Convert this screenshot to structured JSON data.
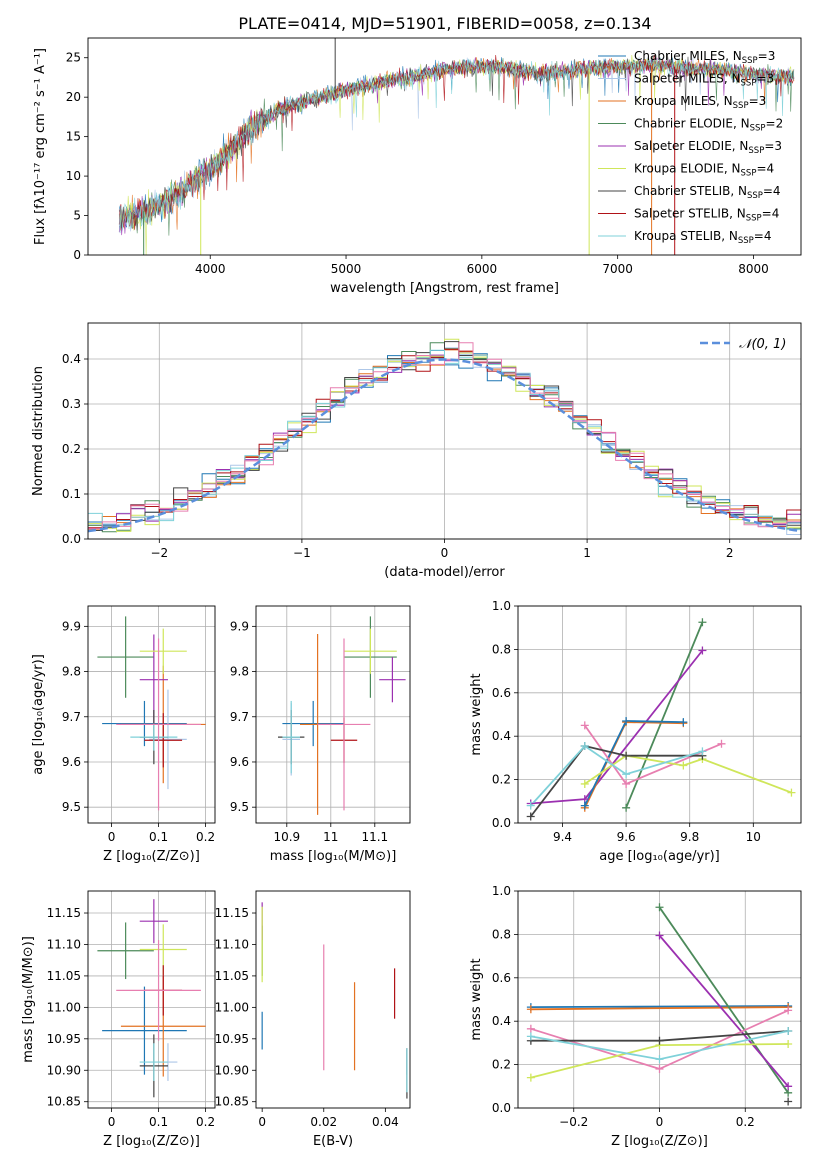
{
  "title": "PLATE=0414, MJD=51901, FIBERID=0058, z=0.134",
  "colors": {
    "chabrier_miles": "#1f77b4",
    "salpeter_miles": "#aec7e8",
    "kroupa_miles": "#e37222",
    "chabrier_elodie": "#4c8a5a",
    "salpeter_elodie": "#9b30b0",
    "kroupa_elodie": "#cfe65a",
    "chabrier_stelib": "#444444",
    "salpeter_stelib": "#b01217",
    "kroupa_stelib": "#7fd1d9",
    "pink": "#e77fb0",
    "normal": "#5b8fdc",
    "grid": "#b0b0b0"
  },
  "chart_data": [
    {
      "id": "spectrum",
      "type": "line",
      "xlabel": "wavelength [Angstrom, rest frame]",
      "ylabel": "Flux [fλ10⁻¹⁷ erg cm⁻² s⁻¹ A⁻¹]",
      "xlim": [
        3100,
        8350
      ],
      "ylim": [
        0,
        27.5
      ],
      "xticks": [
        4000,
        5000,
        6000,
        7000,
        8000
      ],
      "yticks": [
        0,
        5,
        10,
        15,
        20,
        25
      ],
      "continuum": [
        [
          3330,
          4.5
        ],
        [
          3500,
          5.5
        ],
        [
          3700,
          7
        ],
        [
          3850,
          9
        ],
        [
          4000,
          11
        ],
        [
          4100,
          12.5
        ],
        [
          4300,
          16
        ],
        [
          4500,
          18.5
        ],
        [
          4800,
          20
        ],
        [
          5000,
          21
        ],
        [
          5300,
          22
        ],
        [
          5600,
          23
        ],
        [
          5900,
          24
        ],
        [
          6100,
          24
        ],
        [
          6400,
          23
        ],
        [
          6700,
          23.5
        ],
        [
          7000,
          24
        ],
        [
          7300,
          24
        ],
        [
          7700,
          23.5
        ],
        [
          8000,
          23
        ],
        [
          8300,
          22.5
        ]
      ],
      "legend": [
        {
          "label": "Chabrier MILES, N",
          "sub": "SSP",
          "suffix": "=3",
          "color": "chabrier_miles"
        },
        {
          "label": "Salpeter MILES, N",
          "sub": "SSP",
          "suffix": "=3",
          "color": "salpeter_miles"
        },
        {
          "label": "Kroupa MILES, N",
          "sub": "SSP",
          "suffix": "=3",
          "color": "kroupa_miles"
        },
        {
          "label": "Chabrier ELODIE, N",
          "sub": "SSP",
          "suffix": "=2",
          "color": "chabrier_elodie"
        },
        {
          "label": "Salpeter ELODIE, N",
          "sub": "SSP",
          "suffix": "=3",
          "color": "salpeter_elodie"
        },
        {
          "label": "Kroupa ELODIE, N",
          "sub": "SSP",
          "suffix": "=4",
          "color": "kroupa_elodie"
        },
        {
          "label": "Chabrier STELIB, N",
          "sub": "SSP",
          "suffix": "=4",
          "color": "chabrier_stelib"
        },
        {
          "label": "Salpeter STELIB, N",
          "sub": "SSP",
          "suffix": "=4",
          "color": "salpeter_stelib"
        },
        {
          "label": "Kroupa STELIB, N",
          "sub": "SSP",
          "suffix": "=4",
          "color": "kroupa_stelib"
        }
      ],
      "legend_placement": "upper-right",
      "spikes": [
        [
          3510,
          0,
          "chabrier_elodie"
        ],
        [
          3930,
          0,
          "kroupa_elodie"
        ],
        [
          4920,
          27.5,
          "chabrier_stelib"
        ],
        [
          6790,
          0,
          "kroupa_elodie"
        ],
        [
          7250,
          0,
          "kroupa_miles"
        ],
        [
          7420,
          0,
          "salpeter_stelib"
        ]
      ],
      "grid": false
    },
    {
      "id": "residuals",
      "type": "histogram",
      "xlabel": "(data-model)/error",
      "ylabel": "Normed distribution",
      "xlim": [
        -2.5,
        2.5
      ],
      "ylim": [
        0,
        0.48
      ],
      "xticks": [
        -2,
        -1,
        0,
        1,
        2
      ],
      "yticks": [
        0.0,
        0.1,
        0.2,
        0.3,
        0.4
      ],
      "bin_width": 0.1,
      "normal_label": "𝒩(0, 1)",
      "legend_placement": "upper-right",
      "grid": true
    },
    {
      "id": "age_vs_Z",
      "type": "errorbar",
      "xlabel": "Z [log₁₀(Z/Z⊙)]",
      "ylabel": "age  [log₁₀(age/yr)]",
      "xlim": [
        -0.05,
        0.22
      ],
      "ylim": [
        9.465,
        9.945
      ],
      "xticks": [
        0.0,
        0.1,
        0.2
      ],
      "yticks": [
        9.5,
        9.6,
        9.7,
        9.8,
        9.9
      ],
      "points": [
        {
          "x": 0.07,
          "xe": 0.09,
          "y": 9.685,
          "ye": 0.05,
          "color": "chabrier_miles"
        },
        {
          "x": 0.12,
          "xe": 0.04,
          "y": 9.65,
          "ye": 0.11,
          "color": "salpeter_miles"
        },
        {
          "x": 0.11,
          "xe": 0.09,
          "y": 9.683,
          "ye": 0.13,
          "color": "kroupa_miles"
        },
        {
          "x": 0.03,
          "xe": 0.06,
          "y": 9.832,
          "ye": 0.09,
          "color": "chabrier_elodie"
        },
        {
          "x": 0.09,
          "xe": 0.03,
          "y": 9.782,
          "ye": 0.1,
          "color": "salpeter_elodie"
        },
        {
          "x": 0.11,
          "xe": 0.05,
          "y": 9.845,
          "ye": 0.05,
          "color": "kroupa_elodie"
        },
        {
          "x": 0.09,
          "xe": 0.03,
          "y": 9.655,
          "ye": 0.06,
          "color": "chabrier_stelib"
        },
        {
          "x": 0.11,
          "xe": 0.04,
          "y": 9.648,
          "ye": 0.06,
          "color": "salpeter_stelib"
        },
        {
          "x": 0.09,
          "xe": 0.05,
          "y": 9.655,
          "ye": 0.03,
          "color": "kroupa_stelib"
        },
        {
          "x": 0.1,
          "xe": 0.09,
          "y": 9.683,
          "ye": 0.19,
          "color": "pink"
        }
      ],
      "grid": true
    },
    {
      "id": "age_vs_mass",
      "type": "errorbar",
      "xlabel": "mass [log₁₀(M/M⊙)]",
      "ylabel": "",
      "xlim": [
        10.83,
        11.18
      ],
      "ylim": [
        9.465,
        9.945
      ],
      "xticks": [
        10.9,
        11.0,
        11.1
      ],
      "yticks": [
        9.5,
        9.6,
        9.7,
        9.8,
        9.9
      ],
      "points": [
        {
          "x": 10.96,
          "xe": 0.07,
          "y": 9.685,
          "ye": 0.05,
          "color": "chabrier_miles"
        },
        {
          "x": 10.91,
          "xe": 0.02,
          "y": 9.65,
          "ye": 0.08,
          "color": "salpeter_miles"
        },
        {
          "x": 10.97,
          "xe": 0.04,
          "y": 9.683,
          "ye": 0.2,
          "color": "kroupa_miles"
        },
        {
          "x": 11.09,
          "xe": 0.06,
          "y": 9.832,
          "ye": 0.09,
          "color": "chabrier_elodie"
        },
        {
          "x": 11.14,
          "xe": 0.03,
          "y": 9.782,
          "ye": 0.05,
          "color": "salpeter_elodie"
        },
        {
          "x": 11.09,
          "xe": 0.06,
          "y": 9.845,
          "ye": 0.05,
          "color": "kroupa_elodie"
        },
        {
          "x": 10.91,
          "xe": 0.03,
          "y": 9.655,
          "ye": 0.06,
          "color": "chabrier_stelib"
        },
        {
          "x": 11.03,
          "xe": 0.03,
          "y": 9.648,
          "ye": 0.05,
          "color": "salpeter_stelib"
        },
        {
          "x": 10.91,
          "xe": 0.02,
          "y": 9.655,
          "ye": 0.08,
          "color": "kroupa_stelib"
        },
        {
          "x": 11.03,
          "xe": 0.06,
          "y": 9.683,
          "ye": 0.19,
          "color": "pink"
        }
      ],
      "grid": true
    },
    {
      "id": "mass_weight_vs_age",
      "type": "line",
      "xlabel": "age  [log₁₀(age/yr)]",
      "ylabel": "mass weight",
      "xlim": [
        9.26,
        10.15
      ],
      "ylim": [
        0.0,
        1.0
      ],
      "xticks": [
        9.4,
        9.6,
        9.8,
        10.0
      ],
      "yticks": [
        0.0,
        0.2,
        0.4,
        0.6,
        0.8,
        1.0
      ],
      "series": [
        {
          "color": "chabrier_elodie",
          "x": [
            9.6,
            9.84
          ],
          "y": [
            0.07,
            0.925
          ]
        },
        {
          "color": "salpeter_elodie",
          "x": [
            9.3,
            9.47,
            9.84
          ],
          "y": [
            0.09,
            0.11,
            0.795
          ]
        },
        {
          "color": "kroupa_miles",
          "x": [
            9.47,
            9.6,
            9.78
          ],
          "y": [
            0.07,
            0.465,
            0.46
          ]
        },
        {
          "color": "chabrier_miles",
          "x": [
            9.47,
            9.6,
            9.78
          ],
          "y": [
            0.08,
            0.47,
            0.465
          ]
        },
        {
          "color": "pink",
          "x": [
            9.47,
            9.6,
            9.9
          ],
          "y": [
            0.45,
            0.18,
            0.365
          ]
        },
        {
          "color": "kroupa_elodie",
          "x": [
            9.47,
            9.6,
            9.78,
            9.84,
            10.12
          ],
          "y": [
            0.18,
            0.31,
            0.265,
            0.295,
            0.14
          ]
        },
        {
          "color": "chabrier_stelib",
          "x": [
            9.3,
            9.47,
            9.6,
            9.84
          ],
          "y": [
            0.03,
            0.355,
            0.31,
            0.31
          ]
        },
        {
          "color": "kroupa_stelib",
          "x": [
            9.3,
            9.47,
            9.6,
            9.84
          ],
          "y": [
            0.08,
            0.355,
            0.225,
            0.33
          ]
        }
      ],
      "grid": true
    },
    {
      "id": "mass_vs_Z",
      "type": "errorbar",
      "xlabel": "Z [log₁₀(Z/Z⊙)]",
      "ylabel": "mass [log₁₀(M/M⊙)]",
      "xlim": [
        -0.05,
        0.22
      ],
      "ylim": [
        10.84,
        11.185
      ],
      "xticks": [
        0.0,
        0.1,
        0.2
      ],
      "yticks": [
        10.85,
        10.9,
        10.95,
        11.0,
        11.05,
        11.1,
        11.15
      ],
      "points": [
        {
          "x": 0.07,
          "xe": 0.09,
          "y": 10.963,
          "ye": 0.07,
          "color": "chabrier_miles"
        },
        {
          "x": 0.12,
          "xe": 0.02,
          "y": 10.913,
          "ye": 0.03,
          "color": "salpeter_miles"
        },
        {
          "x": 0.11,
          "xe": 0.09,
          "y": 10.97,
          "ye": 0.08,
          "color": "kroupa_miles"
        },
        {
          "x": 0.03,
          "xe": 0.06,
          "y": 11.09,
          "ye": 0.045,
          "color": "chabrier_elodie"
        },
        {
          "x": 0.09,
          "xe": 0.03,
          "y": 11.137,
          "ye": 0.035,
          "color": "salpeter_elodie"
        },
        {
          "x": 0.11,
          "xe": 0.05,
          "y": 11.092,
          "ye": 0.04,
          "color": "kroupa_elodie"
        },
        {
          "x": 0.09,
          "xe": 0.03,
          "y": 10.907,
          "ye": 0.05,
          "color": "chabrier_stelib"
        },
        {
          "x": 0.11,
          "xe": 0.04,
          "y": 11.027,
          "ye": 0.04,
          "color": "salpeter_stelib"
        },
        {
          "x": 0.09,
          "xe": 0.03,
          "y": 10.913,
          "ye": 0.03,
          "color": "kroupa_stelib"
        },
        {
          "x": 0.1,
          "xe": 0.09,
          "y": 11.027,
          "ye": 0.08,
          "color": "pink"
        }
      ],
      "grid": true
    },
    {
      "id": "mass_vs_ebv",
      "type": "errorbar",
      "xlabel": "E(B-V)",
      "ylabel": "",
      "xlim": [
        -0.002,
        0.048
      ],
      "ylim": [
        10.84,
        11.185
      ],
      "xticks": [
        0.0,
        0.02,
        0.04
      ],
      "yticks": [
        10.85,
        10.9,
        10.95,
        11.0,
        11.05,
        11.1,
        11.15
      ],
      "points": [
        {
          "x": 0.0,
          "xe": 0,
          "y": 10.963,
          "ye": 0.03,
          "color": "chabrier_miles"
        },
        {
          "x": 0.047,
          "xe": 0,
          "y": 10.913,
          "ye": 0.02,
          "color": "salpeter_miles"
        },
        {
          "x": 0.03,
          "xe": 0,
          "y": 10.97,
          "ye": 0.07,
          "color": "kroupa_miles"
        },
        {
          "x": 0.0,
          "xe": 0,
          "y": 11.09,
          "ye": 0.04,
          "color": "chabrier_elodie"
        },
        {
          "x": 0.0,
          "xe": 0,
          "y": 11.137,
          "ye": 0.03,
          "color": "salpeter_elodie"
        },
        {
          "x": 0.0,
          "xe": 0,
          "y": 11.1,
          "ye": 0.06,
          "color": "kroupa_elodie"
        },
        {
          "x": 0.047,
          "xe": 0,
          "y": 10.895,
          "ye": 0.04,
          "color": "chabrier_stelib"
        },
        {
          "x": 0.043,
          "xe": 0,
          "y": 11.022,
          "ye": 0.04,
          "color": "salpeter_stelib"
        },
        {
          "x": 0.047,
          "xe": 0,
          "y": 10.9,
          "ye": 0.035,
          "color": "kroupa_stelib"
        },
        {
          "x": 0.02,
          "xe": 0,
          "y": 11.0,
          "ye": 0.1,
          "color": "pink"
        }
      ],
      "grid": false
    },
    {
      "id": "mass_weight_vs_Z",
      "type": "line",
      "xlabel": "Z [log₁₀(Z/Z⊙)]",
      "ylabel": "mass weight",
      "xlim": [
        -0.33,
        0.33
      ],
      "ylim": [
        0.0,
        1.0
      ],
      "xticks": [
        -0.2,
        0.0,
        0.2
      ],
      "yticks": [
        0.0,
        0.2,
        0.4,
        0.6,
        0.8,
        1.0
      ],
      "series": [
        {
          "color": "chabrier_miles",
          "x": [
            -0.3,
            0.3
          ],
          "y": [
            0.465,
            0.47
          ]
        },
        {
          "color": "kroupa_miles",
          "x": [
            -0.3,
            0.3
          ],
          "y": [
            0.455,
            0.465
          ]
        },
        {
          "color": "chabrier_elodie",
          "x": [
            0.0,
            0.3
          ],
          "y": [
            0.925,
            0.07
          ]
        },
        {
          "color": "salpeter_elodie",
          "x": [
            0.0,
            0.3
          ],
          "y": [
            0.795,
            0.1
          ]
        },
        {
          "color": "pink",
          "x": [
            -0.3,
            0.0,
            0.3
          ],
          "y": [
            0.365,
            0.18,
            0.45
          ]
        },
        {
          "color": "kroupa_elodie",
          "x": [
            -0.3,
            0.0,
            0.3
          ],
          "y": [
            0.14,
            0.29,
            0.295
          ]
        },
        {
          "color": "chabrier_stelib",
          "x": [
            -0.3,
            0.0,
            0.3
          ],
          "y": [
            0.31,
            0.31,
            0.355
          ]
        },
        {
          "color": "kroupa_stelib",
          "x": [
            -0.3,
            0.0,
            0.3
          ],
          "y": [
            0.33,
            0.225,
            0.355
          ]
        },
        {
          "color": "chabrier_stelib",
          "x": [
            0.3
          ],
          "y": [
            0.03
          ]
        }
      ],
      "grid": true
    }
  ]
}
